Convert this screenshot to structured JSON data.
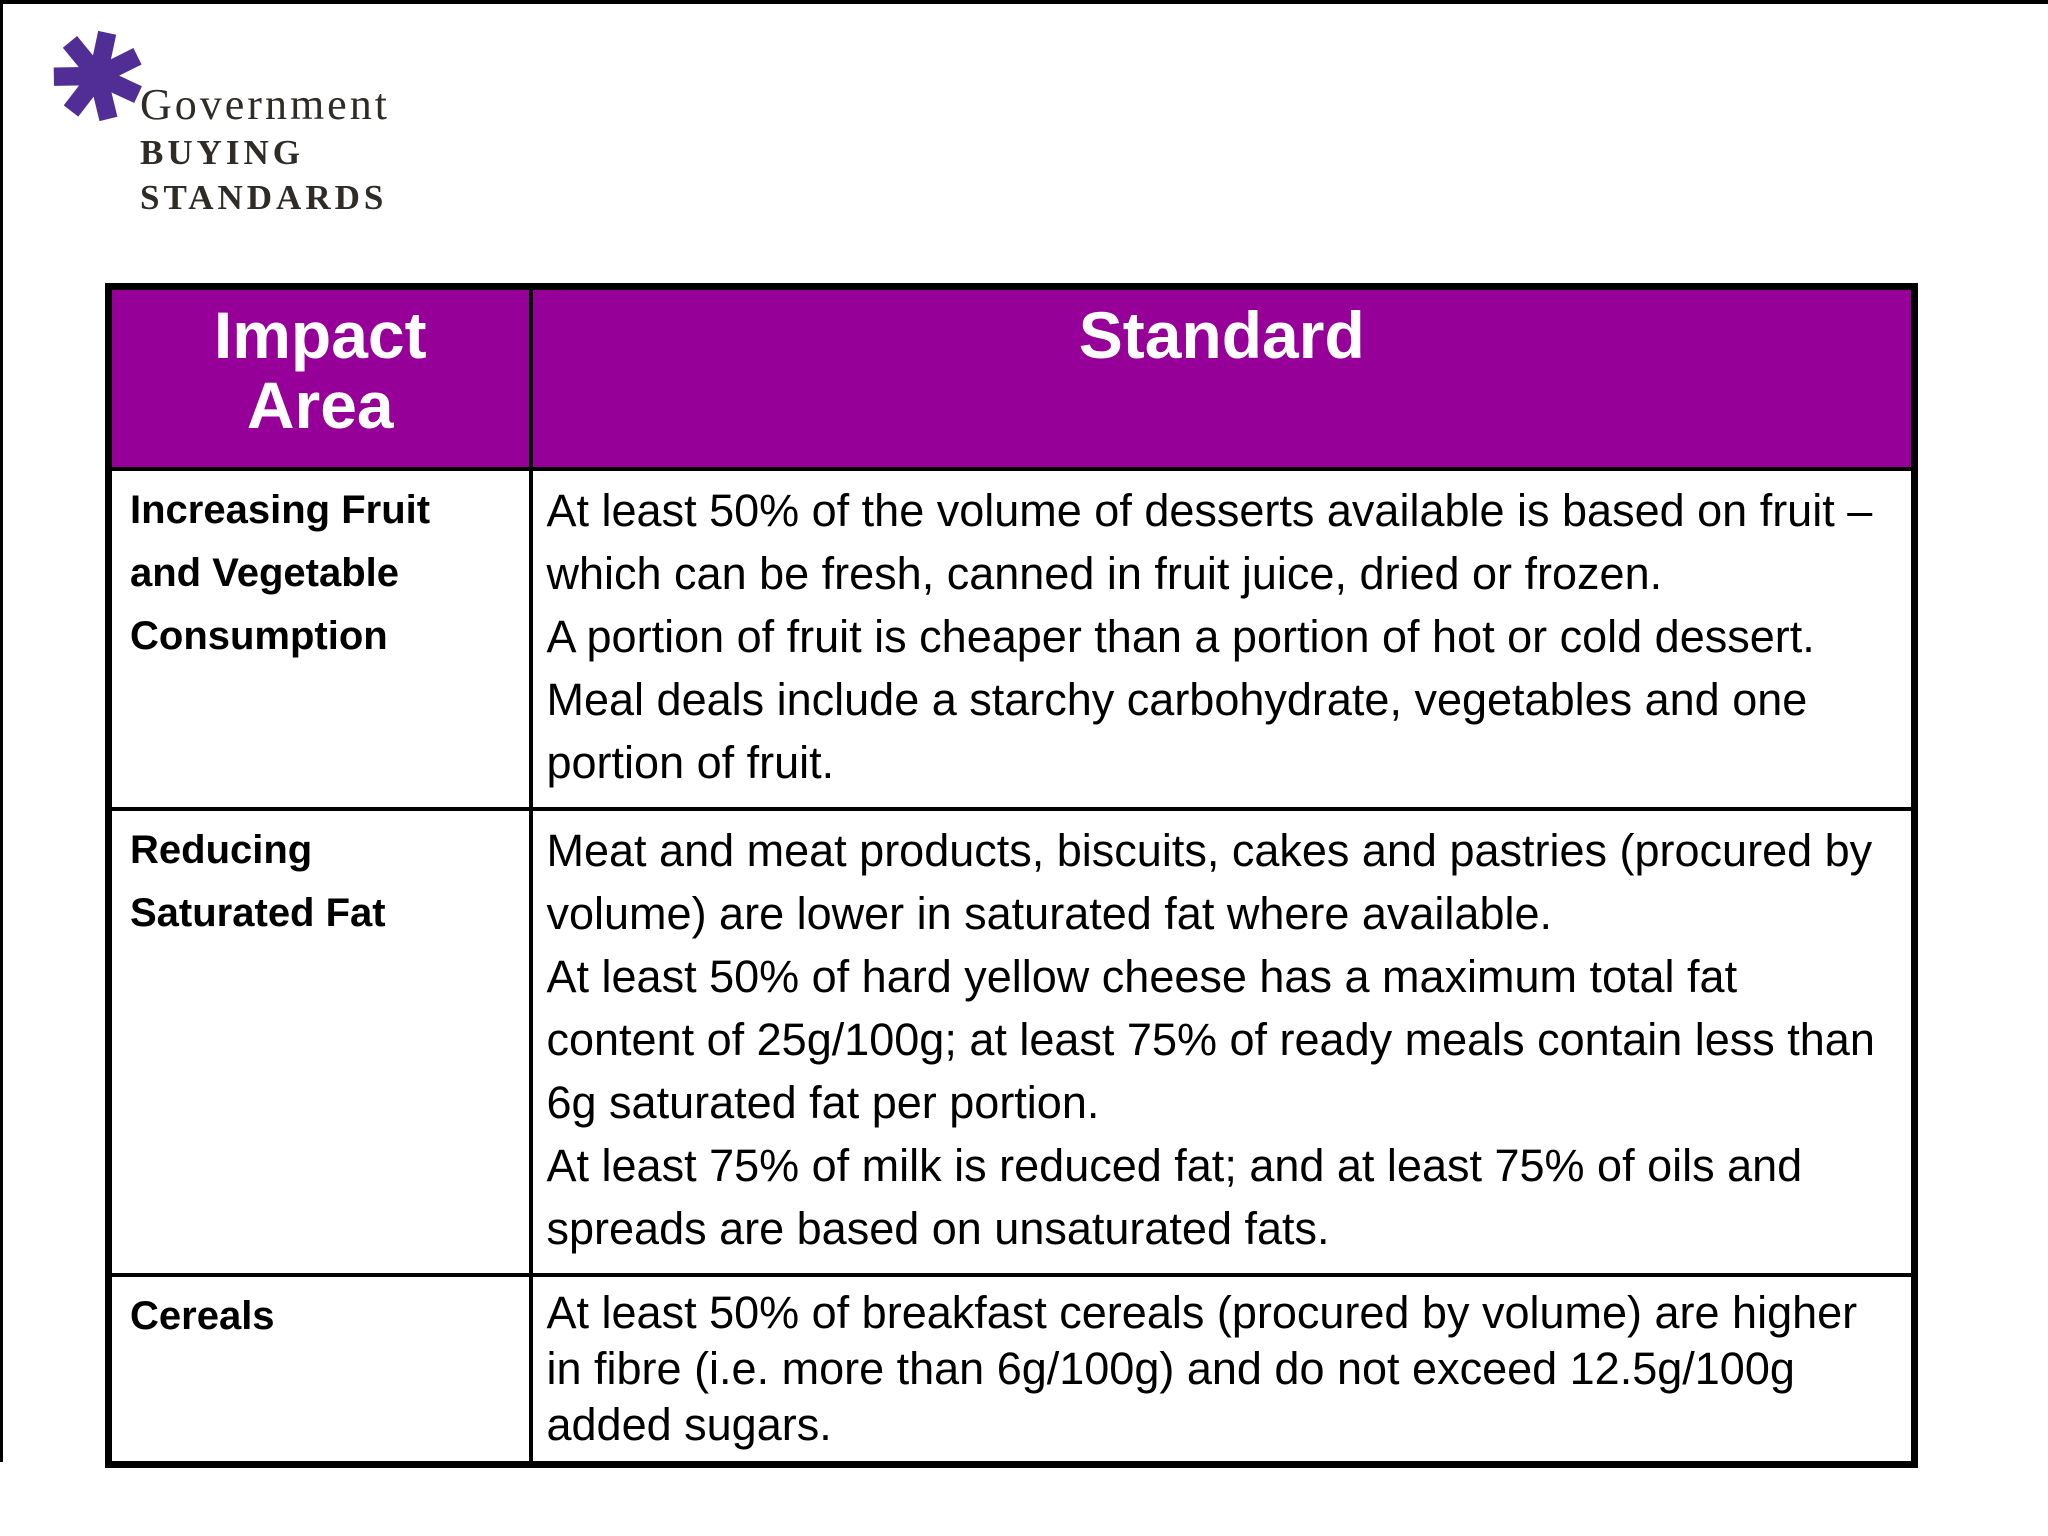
{
  "logo": {
    "asterisk_color": "#512D96",
    "text_color": "#2F2B27",
    "name_line": "Government",
    "bold_line1": "BUYING",
    "bold_line2": "STANDARDS"
  },
  "table": {
    "header_bg": "#960099",
    "header_text_color": "#FFFFFF",
    "border_color": "#000000",
    "columns": [
      "Impact Area",
      "Standard"
    ],
    "rows": [
      {
        "impact_area_lines": [
          "Increasing Fruit",
          "and Vegetable",
          "Consumption"
        ],
        "standard_lines": [
          "At least 50% of the volume of desserts available is based on fruit –",
          "which can be fresh, canned in fruit juice, dried or frozen.",
          "A portion of fruit is cheaper than a portion of hot or cold dessert.",
          "Meal deals include a starchy carbohydrate, vegetables and one",
          "portion of fruit."
        ]
      },
      {
        "impact_area_lines": [
          "Reducing",
          "Saturated Fat"
        ],
        "standard_lines": [
          "Meat and meat products, biscuits, cakes and pastries (procured by",
          "volume) are lower in saturated fat where available.",
          "At least 50% of hard yellow cheese has a maximum total fat",
          "content of 25g/100g; at least 75% of ready meals contain less than",
          "6g saturated fat per portion.",
          "At least 75% of milk is reduced fat; and at least 75% of oils and",
          "spreads are based on unsaturated fats."
        ]
      },
      {
        "impact_area_lines": [
          "Cereals"
        ],
        "standard_lines": [
          "At least 50% of breakfast cereals (procured by volume) are higher",
          "in fibre (i.e. more than 6g/100g) and do not exceed 12.5g/100g",
          "added sugars."
        ]
      }
    ]
  }
}
